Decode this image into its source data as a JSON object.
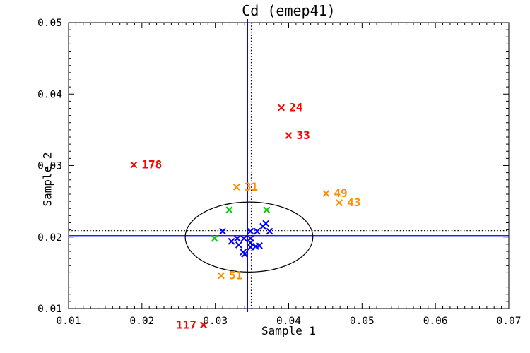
{
  "chart_data": {
    "type": "scatter",
    "title": "Cd (emep41)",
    "xlabel": "Sample 1",
    "ylabel": "Sample 2",
    "xlim": [
      0.01,
      0.07
    ],
    "ylim": [
      0.01,
      0.05
    ],
    "x_tick_labels": [
      "0.01",
      "0.02",
      "0.03",
      "0.04",
      "0.05",
      "0.06",
      "0.07"
    ],
    "y_tick_labels": [
      "0.01",
      "0.02",
      "0.03",
      "0.04",
      "0.05"
    ],
    "minor_tick_step": 0.001,
    "grid": false,
    "legend": "none",
    "axis_color": "#000000",
    "background_color": "#ffffff",
    "marker": "x",
    "series": [
      {
        "name": "extreme-outliers-red",
        "color": "#ff0000",
        "points": [
          {
            "x": 0.039,
            "y": 0.0381,
            "label": "24"
          },
          {
            "x": 0.04,
            "y": 0.0342,
            "label": "33"
          },
          {
            "x": 0.0189,
            "y": 0.0301,
            "label": "178"
          },
          {
            "x": 0.0284,
            "y": 0.0077,
            "label": "117",
            "label_side": "left"
          }
        ]
      },
      {
        "name": "outliers-orange",
        "color": "#ff8c00",
        "points": [
          {
            "x": 0.0329,
            "y": 0.027,
            "label": "31"
          },
          {
            "x": 0.0451,
            "y": 0.0261,
            "label": "49"
          },
          {
            "x": 0.0469,
            "y": 0.0248,
            "label": "43"
          },
          {
            "x": 0.0308,
            "y": 0.0146,
            "label": "51"
          }
        ]
      },
      {
        "name": "borderline-green",
        "color": "#00cc00",
        "points": [
          {
            "x": 0.0319,
            "y": 0.0238
          },
          {
            "x": 0.037,
            "y": 0.0238
          },
          {
            "x": 0.0299,
            "y": 0.0198
          }
        ]
      },
      {
        "name": "inliers-blue",
        "color": "#0000ff",
        "points": [
          {
            "x": 0.031,
            "y": 0.0208
          },
          {
            "x": 0.0322,
            "y": 0.0194
          },
          {
            "x": 0.033,
            "y": 0.0198
          },
          {
            "x": 0.0332,
            "y": 0.0189
          },
          {
            "x": 0.0339,
            "y": 0.0198
          },
          {
            "x": 0.0338,
            "y": 0.0179
          },
          {
            "x": 0.034,
            "y": 0.0176
          },
          {
            "x": 0.0348,
            "y": 0.0208
          },
          {
            "x": 0.0348,
            "y": 0.0198
          },
          {
            "x": 0.0348,
            "y": 0.0192
          },
          {
            "x": 0.0348,
            "y": 0.0186
          },
          {
            "x": 0.0355,
            "y": 0.0187
          },
          {
            "x": 0.0357,
            "y": 0.0208
          },
          {
            "x": 0.036,
            "y": 0.0188
          },
          {
            "x": 0.0365,
            "y": 0.0215
          },
          {
            "x": 0.0369,
            "y": 0.0219
          },
          {
            "x": 0.0374,
            "y": 0.0208
          }
        ]
      }
    ],
    "reference_lines": [
      {
        "orientation": "vertical",
        "value": 0.0344,
        "style": "solid",
        "color": "#0000ff"
      },
      {
        "orientation": "horizontal",
        "value": 0.0202,
        "style": "solid",
        "color": "#0000ff"
      },
      {
        "orientation": "vertical",
        "value": 0.0349,
        "style": "dotted",
        "color": "#000000"
      },
      {
        "orientation": "horizontal",
        "value": 0.0209,
        "style": "dotted",
        "color": "#000000"
      }
    ],
    "ellipse": {
      "cx": 0.0346,
      "cy": 0.02,
      "rx": 0.0087,
      "ry": 0.0049,
      "color": "#000000"
    }
  }
}
